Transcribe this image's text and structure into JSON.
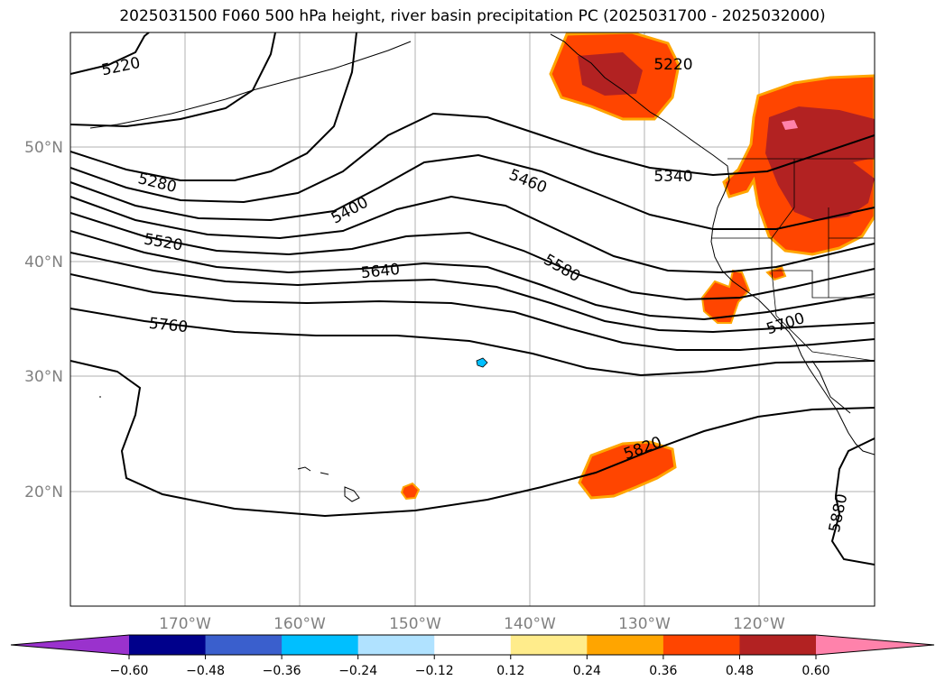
{
  "title": "2025031500 F060 500 hPa height, river basin precipitation PC (2025031700 - 2025032000)",
  "lat_labels": [
    "50°N",
    "40°N",
    "30°N",
    "20°N"
  ],
  "lon_labels": [
    "170°W",
    "160°W",
    "150°W",
    "140°W",
    "130°W",
    "120°W"
  ],
  "contour_labels": [
    "5220",
    "5220",
    "5280",
    "5340",
    "5400",
    "5460",
    "5520",
    "5580",
    "5640",
    "5700",
    "5760",
    "5820",
    "5880"
  ],
  "colorbar": {
    "ticks": [
      "−0.60",
      "−0.48",
      "−0.36",
      "−0.24",
      "−0.12",
      "0.12",
      "0.24",
      "0.36",
      "0.48",
      "0.60"
    ],
    "colors": [
      "#9a32cd",
      "#00008b",
      "#3a5fcd",
      "#00bfff",
      "#b0e2ff",
      "#ffffff",
      "#ffec8b",
      "#ffa500",
      "#ff4500",
      "#b22222",
      "#ff82ab"
    ]
  },
  "precip_colors": {
    "yellow": "#ffec8b",
    "orange": "#ffa500",
    "orangered": "#ff4500",
    "firebrick": "#b22222",
    "pink": "#ff82ab",
    "cyan": "#00bfff"
  }
}
